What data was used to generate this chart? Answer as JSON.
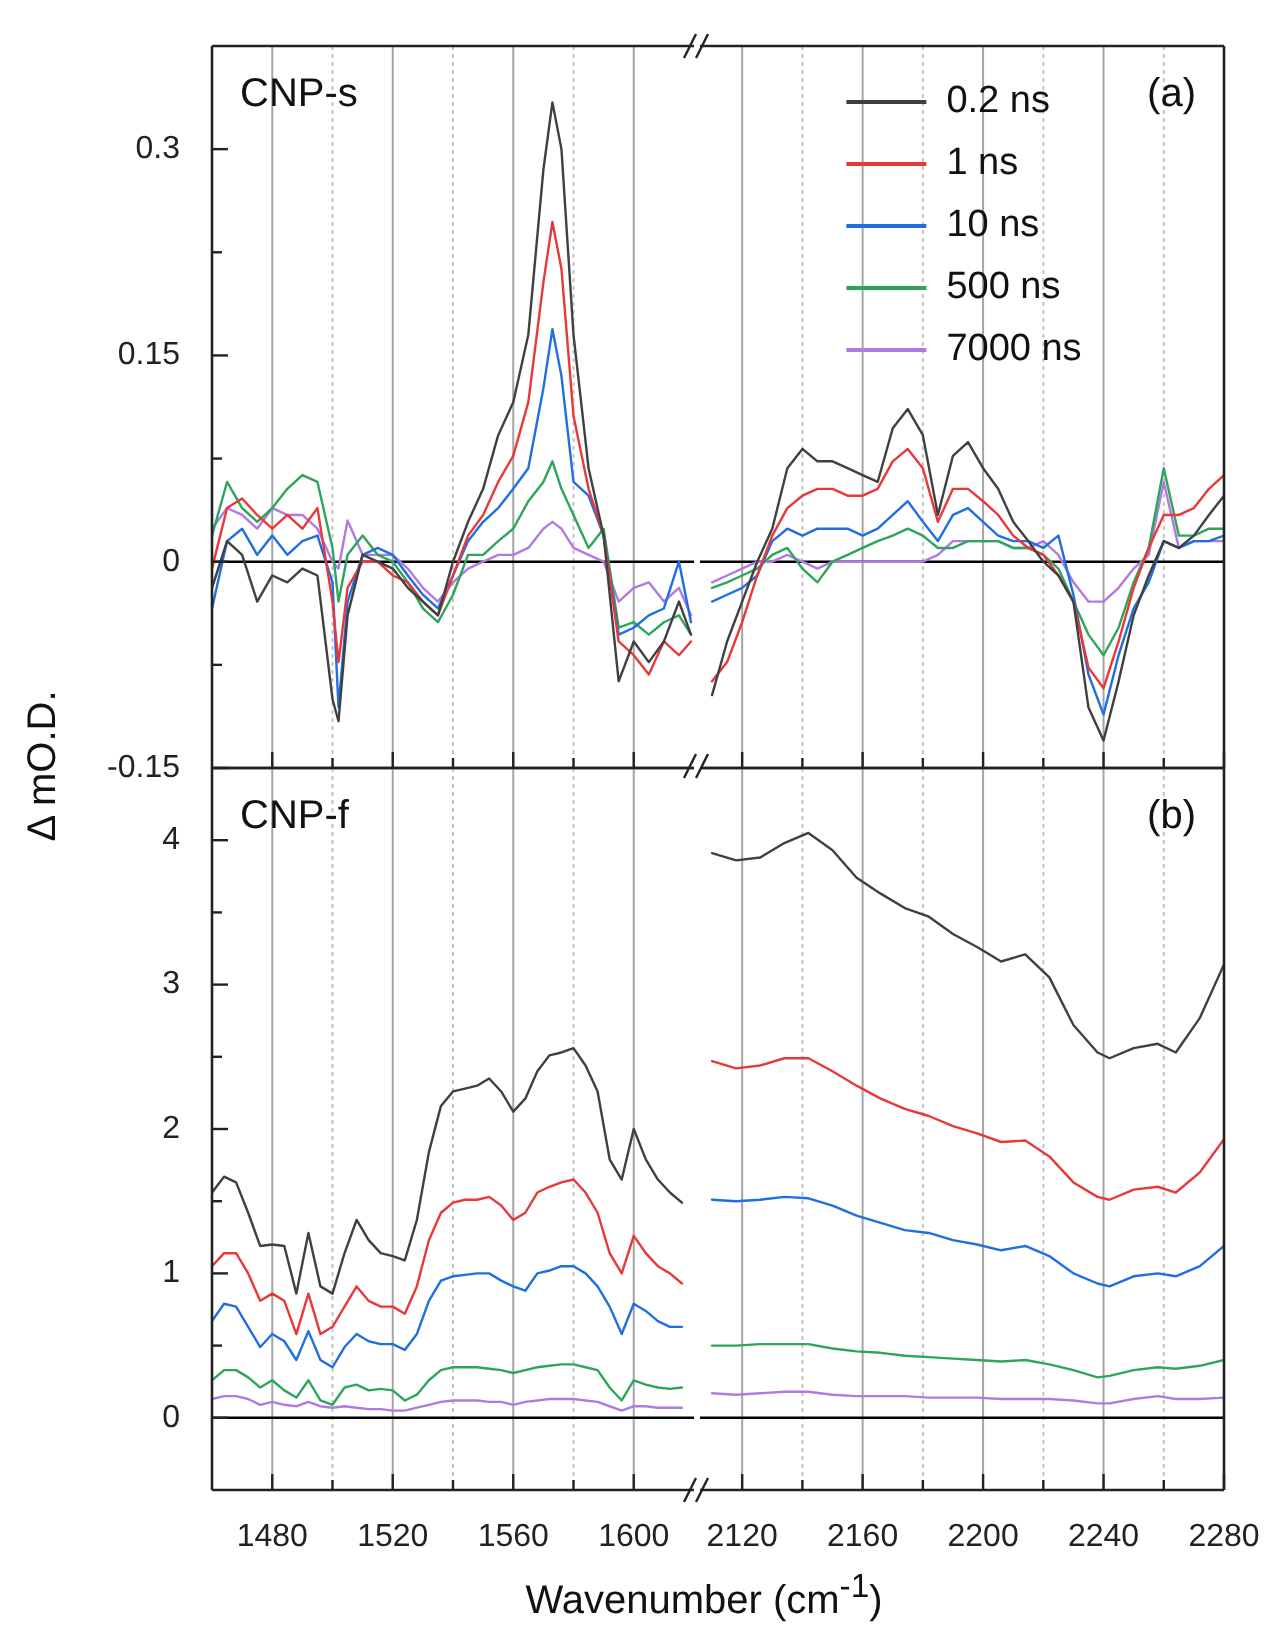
{
  "chart_data": [
    {
      "type": "line",
      "ylabel": "Δ mO.D.",
      "annotations": [
        "CNP-s"
      ],
      "tick_labels": "y",
      "grid": "x",
      "xlim": [
        1460,
        1620
      ],
      "xticks": [
        1480,
        {
          "value": 1500,
          "label": null
        },
        1520,
        {
          "value": 1540,
          "label": null
        },
        1560,
        {
          "value": 1580,
          "label": null
        },
        1600
      ],
      "ylim": [
        -0.15,
        0.375
      ],
      "yticks": [
        -0.15,
        {
          "value": -0.075,
          "label": null
        },
        0,
        {
          "value": 0.075,
          "label": null
        },
        0.15,
        {
          "value": 0.225,
          "label": null
        },
        0.3
      ],
      "ref_lines": [
        {
          "axis": "y",
          "value": 0,
          "color": "#000000"
        }
      ],
      "x": [
        1460,
        1465,
        1470,
        1475,
        1480,
        1485,
        1490,
        1495,
        1500,
        1502,
        1505,
        1510,
        1515,
        1520,
        1525,
        1530,
        1535,
        1540,
        1545,
        1550,
        1555,
        1560,
        1565,
        1570,
        1573,
        1576,
        1580,
        1585,
        1590,
        1595,
        1600,
        1605,
        1610,
        1615,
        1619
      ],
      "series": [
        {
          "color": "#404040",
          "values": [
            -0.019,
            0.015,
            0.005,
            -0.029,
            -0.01,
            -0.015,
            -0.005,
            -0.01,
            -0.1,
            -0.116,
            -0.039,
            0.005,
            0,
            -0.005,
            -0.019,
            -0.029,
            -0.039,
            0,
            0.029,
            0.053,
            0.092,
            0.116,
            0.165,
            0.285,
            0.334,
            0.3,
            0.165,
            0.068,
            0.019,
            -0.087,
            -0.058,
            -0.073,
            -0.058,
            -0.029,
            -0.053
          ]
        },
        {
          "color": "#e8393a",
          "values": [
            -0.005,
            0.039,
            0.046,
            0.034,
            0.024,
            0.034,
            0.024,
            0.039,
            -0.029,
            -0.073,
            -0.019,
            0,
            0,
            -0.01,
            -0.015,
            -0.029,
            -0.039,
            -0.01,
            0.019,
            0.034,
            0.058,
            0.077,
            0.116,
            0.203,
            0.247,
            0.213,
            0.106,
            0.053,
            0.019,
            -0.058,
            -0.068,
            -0.082,
            -0.058,
            -0.068,
            -0.058
          ]
        },
        {
          "color": "#1f6fe0",
          "values": [
            -0.034,
            0.015,
            0.024,
            0.005,
            0.019,
            0.005,
            0.015,
            0.019,
            -0.015,
            -0.106,
            -0.029,
            0.005,
            0.01,
            0.005,
            -0.01,
            -0.024,
            -0.034,
            -0.01,
            0.015,
            0.029,
            0.039,
            0.053,
            0.068,
            0.126,
            0.169,
            0.135,
            0.058,
            0.048,
            0.019,
            -0.053,
            -0.048,
            -0.039,
            -0.034,
            0,
            -0.044
          ]
        },
        {
          "color": "#2ea55a",
          "values": [
            0.019,
            0.058,
            0.039,
            0.029,
            0.039,
            0.053,
            0.063,
            0.058,
            0.01,
            -0.029,
            0.005,
            0.019,
            0.005,
            0,
            -0.015,
            -0.034,
            -0.044,
            -0.024,
            0.005,
            0.005,
            0.015,
            0.024,
            0.044,
            0.058,
            0.073,
            0.053,
            0.034,
            0.01,
            0.024,
            -0.048,
            -0.044,
            -0.053,
            -0.044,
            -0.039,
            -0.053
          ]
        },
        {
          "color": "#b07ae0",
          "values": [
            0.024,
            0.039,
            0.034,
            0.024,
            0.039,
            0.034,
            0.034,
            0.024,
            0,
            -0.005,
            0.03,
            0.005,
            0.005,
            0.005,
            -0.005,
            -0.019,
            -0.029,
            -0.015,
            -0.005,
            0,
            0.005,
            0.005,
            0.01,
            0.024,
            0.029,
            0.024,
            0.01,
            0.005,
            0,
            -0.029,
            -0.019,
            -0.015,
            -0.029,
            -0.019,
            -0.039
          ]
        }
      ]
    },
    {
      "type": "line",
      "annotations": [
        "(a)"
      ],
      "tick_labels": false,
      "grid": "x",
      "legend": "top",
      "xlim": [
        2106,
        2280
      ],
      "xticks": [
        2120,
        {
          "value": 2140,
          "label": null
        },
        2160,
        {
          "value": 2180,
          "label": null
        },
        2200,
        {
          "value": 2220,
          "label": null
        },
        2240,
        {
          "value": 2260,
          "label": null
        },
        2280
      ],
      "ylim": [
        -0.15,
        0.375
      ],
      "ref_lines": [
        {
          "axis": "y",
          "value": 0,
          "color": "#000000"
        }
      ],
      "x": [
        2110,
        2115,
        2120,
        2125,
        2130,
        2135,
        2140,
        2145,
        2150,
        2155,
        2160,
        2165,
        2170,
        2175,
        2180,
        2185,
        2190,
        2195,
        2200,
        2205,
        2210,
        2215,
        2220,
        2225,
        2230,
        2235,
        2240,
        2245,
        2250,
        2255,
        2260,
        2265,
        2270,
        2275,
        2280
      ],
      "series": [
        {
          "name": "0.2 ns",
          "color": "#404040",
          "values": [
            -0.097,
            -0.058,
            -0.029,
            0,
            0.024,
            0.068,
            0.082,
            0.073,
            0.073,
            0.068,
            0.063,
            0.058,
            0.097,
            0.111,
            0.092,
            0.034,
            0.077,
            0.087,
            0.068,
            0.053,
            0.029,
            0.015,
            0,
            -0.01,
            -0.029,
            -0.106,
            -0.13,
            -0.087,
            -0.039,
            -0.01,
            0.015,
            0.01,
            0.019,
            0.034,
            0.048
          ]
        },
        {
          "name": "1 ns",
          "color": "#e8393a",
          "values": [
            -0.087,
            -0.073,
            -0.044,
            -0.01,
            0.019,
            0.039,
            0.048,
            0.053,
            0.053,
            0.048,
            0.048,
            0.053,
            0.073,
            0.082,
            0.068,
            0.029,
            0.053,
            0.053,
            0.044,
            0.034,
            0.019,
            0.01,
            0.005,
            -0.01,
            -0.029,
            -0.077,
            -0.092,
            -0.058,
            -0.019,
            0.01,
            0.034,
            0.034,
            0.039,
            0.053,
            0.063
          ]
        },
        {
          "name": "10 ns",
          "color": "#1f6fe0",
          "values": [
            -0.029,
            -0.024,
            -0.019,
            -0.01,
            0.015,
            0.024,
            0.019,
            0.024,
            0.024,
            0.024,
            0.019,
            0.024,
            0.034,
            0.044,
            0.029,
            0.015,
            0.034,
            0.039,
            0.029,
            0.019,
            0.015,
            0.015,
            0.01,
            0.019,
            -0.024,
            -0.082,
            -0.111,
            -0.068,
            -0.034,
            -0.015,
            0.015,
            0.01,
            0.015,
            0.015,
            0.019
          ]
        },
        {
          "name": "500 ns",
          "color": "#2ea55a",
          "values": [
            -0.019,
            -0.015,
            -0.01,
            -0.005,
            0.005,
            0.01,
            -0.005,
            -0.015,
            0,
            0.005,
            0.01,
            0.015,
            0.019,
            0.024,
            0.019,
            0.01,
            0.01,
            0.015,
            0.015,
            0.015,
            0.01,
            0.01,
            0.005,
            -0.005,
            -0.029,
            -0.053,
            -0.068,
            -0.048,
            -0.015,
            0.01,
            0.068,
            0.019,
            0.019,
            0.024,
            0.024
          ]
        },
        {
          "name": "7000 ns",
          "color": "#b07ae0",
          "values": [
            -0.015,
            -0.01,
            -0.005,
            0,
            0,
            0.005,
            0,
            -0.005,
            0,
            0,
            0,
            0,
            0,
            0,
            0,
            0.005,
            0.015,
            0.015,
            0.015,
            0.015,
            0.01,
            0.01,
            0.015,
            0.005,
            -0.015,
            -0.029,
            -0.029,
            -0.019,
            -0.005,
            0.005,
            0.058,
            0.01,
            0.015,
            0.015,
            0.015
          ]
        }
      ]
    },
    {
      "type": "line",
      "xlabel": "Wavenumber (cm$^{-1}$)",
      "annotations": [
        "CNP-f"
      ],
      "grid": "x",
      "xlim": [
        1460,
        1620
      ],
      "xticks": [
        1480,
        {
          "value": 1500,
          "label": null
        },
        1520,
        {
          "value": 1540,
          "label": null
        },
        1560,
        {
          "value": 1580,
          "label": null
        },
        1600
      ],
      "ylim": [
        -0.5,
        4.5
      ],
      "yticks": [
        0,
        {
          "value": 0.5,
          "label": null
        },
        1,
        {
          "value": 1.5,
          "label": null
        },
        2,
        {
          "value": 2.5,
          "label": null
        },
        3,
        {
          "value": 3.5,
          "label": null
        },
        4
      ],
      "ref_lines": [
        {
          "axis": "y",
          "value": 0,
          "color": "#000000"
        }
      ],
      "x": [
        1460,
        1464,
        1468,
        1472,
        1476,
        1480,
        1484,
        1488,
        1492,
        1496,
        1500,
        1504,
        1508,
        1512,
        1516,
        1520,
        1524,
        1528,
        1532,
        1536,
        1540,
        1544,
        1548,
        1552,
        1556,
        1560,
        1564,
        1568,
        1572,
        1576,
        1580,
        1584,
        1588,
        1592,
        1596,
        1600,
        1604,
        1608,
        1612,
        1616
      ],
      "series": [
        {
          "color": "#404040",
          "values": [
            1.56,
            1.67,
            1.63,
            1.42,
            1.19,
            1.2,
            1.19,
            0.86,
            1.28,
            0.91,
            0.86,
            1.14,
            1.37,
            1.23,
            1.14,
            1.12,
            1.09,
            1.37,
            1.84,
            2.16,
            2.26,
            2.28,
            2.3,
            2.35,
            2.26,
            2.12,
            2.21,
            2.4,
            2.51,
            2.53,
            2.56,
            2.44,
            2.26,
            1.79,
            1.65,
            2,
            1.79,
            1.65,
            1.56,
            1.49
          ]
        },
        {
          "color": "#e8393a",
          "values": [
            1.05,
            1.14,
            1.14,
            1,
            0.81,
            0.86,
            0.81,
            0.58,
            0.86,
            0.58,
            0.63,
            0.77,
            0.91,
            0.81,
            0.77,
            0.77,
            0.72,
            0.91,
            1.23,
            1.42,
            1.49,
            1.51,
            1.51,
            1.53,
            1.47,
            1.37,
            1.42,
            1.56,
            1.6,
            1.63,
            1.65,
            1.56,
            1.42,
            1.14,
            1,
            1.26,
            1.14,
            1.05,
            1,
            0.93
          ]
        },
        {
          "color": "#1f6fe0",
          "values": [
            0.67,
            0.79,
            0.77,
            0.63,
            0.49,
            0.58,
            0.53,
            0.4,
            0.6,
            0.4,
            0.35,
            0.49,
            0.58,
            0.53,
            0.51,
            0.51,
            0.47,
            0.58,
            0.81,
            0.95,
            0.98,
            0.99,
            1,
            1,
            0.95,
            0.91,
            0.88,
            1,
            1.02,
            1.05,
            1.05,
            1,
            0.91,
            0.77,
            0.58,
            0.79,
            0.74,
            0.67,
            0.63,
            0.63
          ]
        },
        {
          "color": "#2ea55a",
          "values": [
            0.26,
            0.33,
            0.33,
            0.28,
            0.21,
            0.26,
            0.19,
            0.14,
            0.26,
            0.12,
            0.09,
            0.21,
            0.23,
            0.19,
            0.2,
            0.19,
            0.12,
            0.16,
            0.26,
            0.33,
            0.35,
            0.35,
            0.35,
            0.34,
            0.33,
            0.31,
            0.33,
            0.35,
            0.36,
            0.37,
            0.37,
            0.35,
            0.33,
            0.21,
            0.12,
            0.26,
            0.23,
            0.21,
            0.2,
            0.21
          ]
        },
        {
          "color": "#b07ae0",
          "values": [
            0.13,
            0.15,
            0.15,
            0.13,
            0.09,
            0.11,
            0.09,
            0.08,
            0.11,
            0.08,
            0.07,
            0.08,
            0.07,
            0.06,
            0.06,
            0.05,
            0.05,
            0.07,
            0.09,
            0.11,
            0.12,
            0.12,
            0.12,
            0.11,
            0.11,
            0.09,
            0.11,
            0.12,
            0.13,
            0.13,
            0.13,
            0.12,
            0.11,
            0.08,
            0.05,
            0.08,
            0.08,
            0.07,
            0.07,
            0.07
          ]
        }
      ]
    },
    {
      "type": "line",
      "annotations": [
        "(b)"
      ],
      "tick_labels": "x",
      "grid": "x",
      "xlim": [
        2106,
        2280
      ],
      "xticks": [
        2120,
        {
          "value": 2140,
          "label": null
        },
        2160,
        {
          "value": 2180,
          "label": null
        },
        2200,
        {
          "value": 2220,
          "label": null
        },
        2240,
        {
          "value": 2260,
          "label": null
        },
        2280
      ],
      "ylim": [
        -0.5,
        4.5
      ],
      "ref_lines": [
        {
          "axis": "y",
          "value": 0,
          "color": "#000000"
        }
      ],
      "x": [
        2110,
        2118,
        2126,
        2134,
        2142,
        2150,
        2158,
        2166,
        2174,
        2182,
        2190,
        2198,
        2206,
        2214,
        2222,
        2230,
        2238,
        2242,
        2250,
        2258,
        2264,
        2272,
        2280
      ],
      "series": [
        {
          "color": "#404040",
          "values": [
            3.91,
            3.86,
            3.88,
            3.98,
            4.05,
            3.93,
            3.74,
            3.63,
            3.53,
            3.47,
            3.35,
            3.26,
            3.16,
            3.21,
            3.05,
            2.72,
            2.53,
            2.49,
            2.56,
            2.59,
            2.53,
            2.77,
            3.14
          ]
        },
        {
          "color": "#e8393a",
          "values": [
            2.47,
            2.42,
            2.44,
            2.49,
            2.49,
            2.4,
            2.3,
            2.21,
            2.14,
            2.09,
            2.02,
            1.97,
            1.91,
            1.92,
            1.81,
            1.63,
            1.53,
            1.51,
            1.58,
            1.6,
            1.56,
            1.7,
            1.93
          ]
        },
        {
          "color": "#1f6fe0",
          "values": [
            1.51,
            1.5,
            1.51,
            1.53,
            1.52,
            1.47,
            1.4,
            1.35,
            1.3,
            1.28,
            1.23,
            1.2,
            1.16,
            1.19,
            1.12,
            1,
            0.93,
            0.91,
            0.98,
            1,
            0.98,
            1.05,
            1.19
          ]
        },
        {
          "color": "#2ea55a",
          "values": [
            0.5,
            0.5,
            0.51,
            0.51,
            0.51,
            0.48,
            0.46,
            0.45,
            0.43,
            0.42,
            0.41,
            0.4,
            0.39,
            0.4,
            0.37,
            0.33,
            0.28,
            0.29,
            0.33,
            0.35,
            0.34,
            0.36,
            0.4
          ]
        },
        {
          "color": "#b07ae0",
          "values": [
            0.17,
            0.16,
            0.17,
            0.18,
            0.18,
            0.16,
            0.15,
            0.15,
            0.15,
            0.14,
            0.14,
            0.14,
            0.13,
            0.13,
            0.13,
            0.12,
            0.1,
            0.1,
            0.13,
            0.15,
            0.13,
            0.13,
            0.14
          ]
        }
      ]
    }
  ]
}
